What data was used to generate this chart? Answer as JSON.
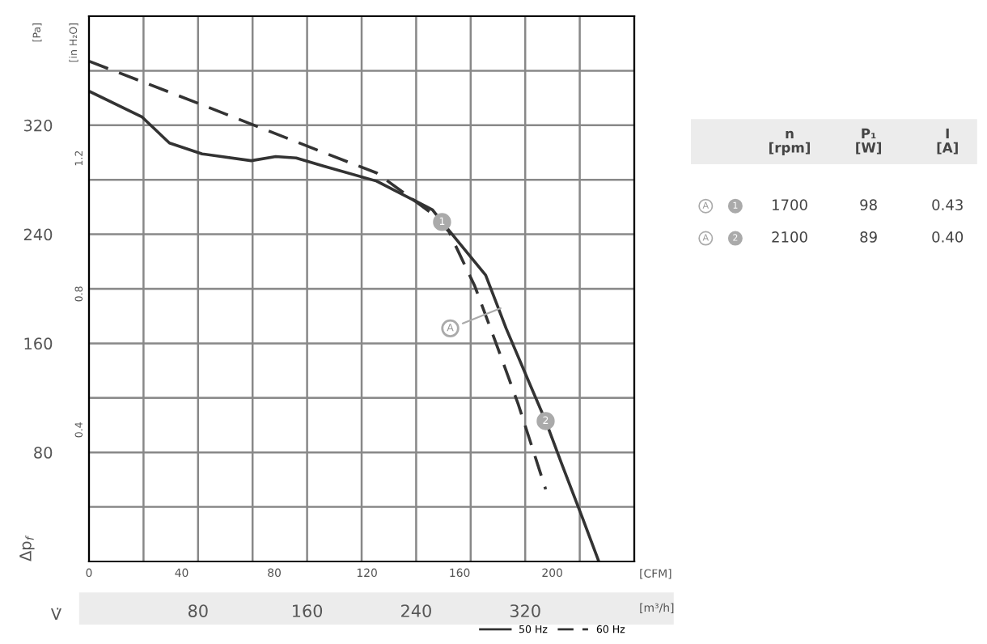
{
  "chart_data": {
    "type": "line",
    "xlabel": "V̇",
    "ylabel": "Δp$_{f}$",
    "x": [
      0,
      39,
      59,
      83,
      119,
      137,
      152,
      172,
      211,
      252,
      259,
      291,
      306,
      323,
      335,
      347,
      362,
      374
    ],
    "series": [
      {
        "name": "50 Hz",
        "color": "#333333",
        "line_style": "solid",
        "values": [
          345,
          326,
          307,
          299,
          294,
          297,
          296,
          290,
          279,
          258,
          249,
          210,
          171,
          131,
          103,
          71,
          32,
          0
        ]
      },
      {
        "name": "60 Hz",
        "color": "#333333",
        "line_style": "dashed",
        "x": [
          0,
          83,
          172,
          211,
          252,
          264,
          283,
          299,
          315,
          335
        ],
        "values": [
          367,
          335,
          300,
          285,
          255,
          242,
          202,
          159,
          115,
          53
        ]
      }
    ],
    "xlim": [
      0,
      400
    ],
    "xticks": [
      {
        "value": 40,
        "label": null
      },
      80,
      {
        "value": 120,
        "label": null
      },
      160,
      {
        "value": 200,
        "label": null
      },
      240,
      {
        "value": 280,
        "label": null
      },
      320,
      {
        "value": 360,
        "label": null
      }
    ],
    "x2lim": [
      0,
      235.4
    ],
    "x2ticks": [
      0,
      40,
      80,
      120,
      160,
      200
    ],
    "ylim": [
      0,
      400
    ],
    "yticks": [
      {
        "value": 40,
        "label": null
      },
      80,
      {
        "value": 120,
        "label": null
      },
      160,
      {
        "value": 200,
        "label": null
      },
      240,
      {
        "value": 280,
        "label": null
      },
      320,
      {
        "value": 360,
        "label": null
      }
    ],
    "y2lim": [
      0,
      1.606
    ],
    "y2ticks": [
      0.4,
      0.8,
      1.2
    ],
    "grid": true,
    "legend": "bottom right",
    "annotations": [
      "[Pa]",
      "[in H₂O]",
      "[CFM]",
      "[m³/h]",
      {
        "text": "1",
        "x": 259,
        "y": 249
      },
      {
        "text": "2",
        "x": 335,
        "y": 103
      },
      {
        "text": "A",
        "x": 305,
        "y": 187
      },
      "n\n[rpm]",
      "P₁\n[W]",
      "I\n[A]",
      "A",
      "1",
      "1700",
      "98",
      "0.43",
      "A",
      "2",
      "2100",
      "89",
      "0.40"
    ]
  }
}
